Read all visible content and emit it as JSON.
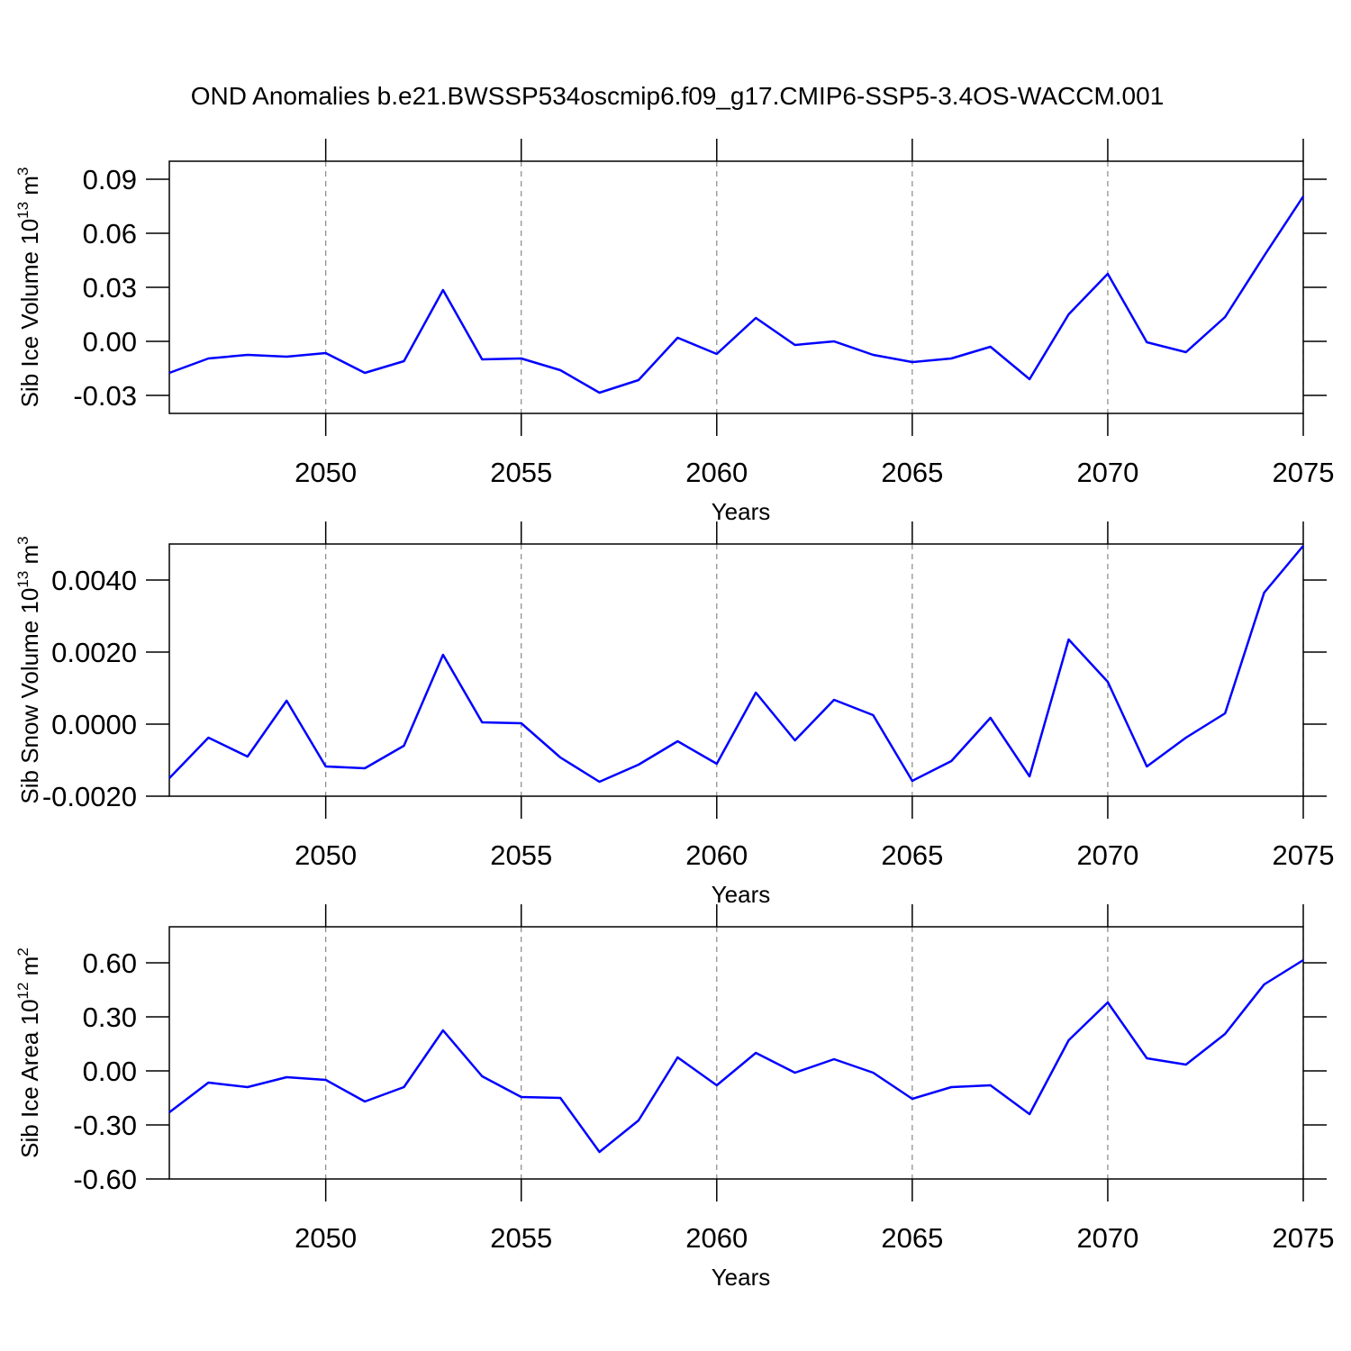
{
  "title": "OND Anomalies b.e21.BWSSP534oscmip6.f09_g17.CMIP6-SSP5-3.4OS-WACCM.001",
  "chart_data": [
    {
      "type": "line",
      "ylabel": [
        "Sib Ice Volume 10",
        "13",
        " m",
        "3"
      ],
      "xlabel": "Years",
      "x": [
        2046,
        2047,
        2048,
        2049,
        2050,
        2051,
        2052,
        2053,
        2054,
        2055,
        2056,
        2057,
        2058,
        2059,
        2060,
        2061,
        2062,
        2063,
        2064,
        2065,
        2066,
        2067,
        2068,
        2069,
        2070,
        2071,
        2072,
        2073,
        2074,
        2075
      ],
      "values": [
        -0.0175,
        -0.0095,
        -0.0075,
        -0.0085,
        -0.0065,
        -0.0175,
        -0.011,
        0.0285,
        -0.01,
        -0.0095,
        -0.016,
        -0.0285,
        -0.0215,
        0.002,
        -0.007,
        0.013,
        -0.002,
        0.0,
        -0.0075,
        -0.0115,
        -0.0095,
        -0.003,
        -0.021,
        0.015,
        0.0375,
        -0.0005,
        -0.006,
        0.0135,
        0.0475,
        0.0805
      ],
      "color": "#0000ff",
      "grid": "x",
      "xlim": [
        2046,
        2075
      ],
      "xticks": [
        2050,
        2055,
        2060,
        2065,
        2070,
        2075
      ],
      "ylim": [
        -0.04,
        0.1
      ],
      "yticks": [
        0.09,
        0.06,
        0.03,
        {
          "value": 0,
          "label": "0.00"
        },
        -0.03
      ]
    },
    {
      "type": "line",
      "ylabel": [
        "Sib Snow Volume 10",
        "13",
        " m",
        "3"
      ],
      "xlabel": "Years",
      "x": [
        2046,
        2047,
        2048,
        2049,
        2050,
        2051,
        2052,
        2053,
        2054,
        2055,
        2056,
        2057,
        2058,
        2059,
        2060,
        2061,
        2062,
        2063,
        2064,
        2065,
        2066,
        2067,
        2068,
        2069,
        2070,
        2071,
        2072,
        2073,
        2074,
        2075
      ],
      "values": [
        -0.0015,
        -0.000375,
        -0.0009,
        0.00065,
        -0.001175,
        -0.001225,
        -0.0006,
        0.001925,
        5e-05,
        2.5e-05,
        -0.000925,
        -0.0016,
        -0.001125,
        -0.000475,
        -0.0011,
        0.000875,
        -0.00045,
        0.000675,
        0.00025,
        -0.001575,
        -0.001025,
        0.000175,
        -0.00145,
        0.00235,
        0.001175,
        -0.001175,
        -0.000375,
        0.0003,
        0.00365,
        0.00495
      ],
      "color": "#0000ff",
      "grid": "x",
      "xlim": [
        2046,
        2075
      ],
      "xticks": [
        2050,
        2055,
        2060,
        2065,
        2070,
        2075
      ],
      "ylim": [
        -0.002,
        0.005
      ],
      "yticks": [
        {
          "value": 0.004,
          "label": "0.0040"
        },
        {
          "value": 0.002,
          "label": "0.0020"
        },
        {
          "value": 0,
          "label": "0.0000"
        },
        {
          "value": -0.002,
          "label": "-0.0020"
        }
      ]
    },
    {
      "type": "line",
      "ylabel": [
        "Sib Ice Area 10",
        "12",
        " m",
        "2"
      ],
      "xlabel": "Years",
      "x": [
        2046,
        2047,
        2048,
        2049,
        2050,
        2051,
        2052,
        2053,
        2054,
        2055,
        2056,
        2057,
        2058,
        2059,
        2060,
        2061,
        2062,
        2063,
        2064,
        2065,
        2066,
        2067,
        2068,
        2069,
        2070,
        2071,
        2072,
        2073,
        2074,
        2075
      ],
      "values": [
        -0.23,
        -0.065,
        -0.09,
        -0.035,
        -0.05,
        -0.17,
        -0.09,
        0.225,
        -0.03,
        -0.145,
        -0.15,
        -0.45,
        -0.275,
        0.075,
        -0.08,
        0.1,
        -0.01,
        0.065,
        -0.01,
        -0.155,
        -0.09,
        -0.08,
        -0.24,
        0.17,
        0.38,
        0.07,
        0.035,
        0.205,
        0.48,
        0.615
      ],
      "color": "#0000ff",
      "grid": "x",
      "xlim": [
        2046,
        2075
      ],
      "xticks": [
        2050,
        2055,
        2060,
        2065,
        2070,
        2075
      ],
      "ylim": [
        -0.6,
        0.8
      ],
      "yticks": [
        {
          "value": 0.6,
          "label": "0.60"
        },
        {
          "value": 0.3,
          "label": "0.30"
        },
        {
          "value": 0,
          "label": "0.00"
        },
        {
          "value": -0.3,
          "label": "-0.30"
        },
        {
          "value": -0.6,
          "label": "-0.60"
        }
      ]
    }
  ]
}
